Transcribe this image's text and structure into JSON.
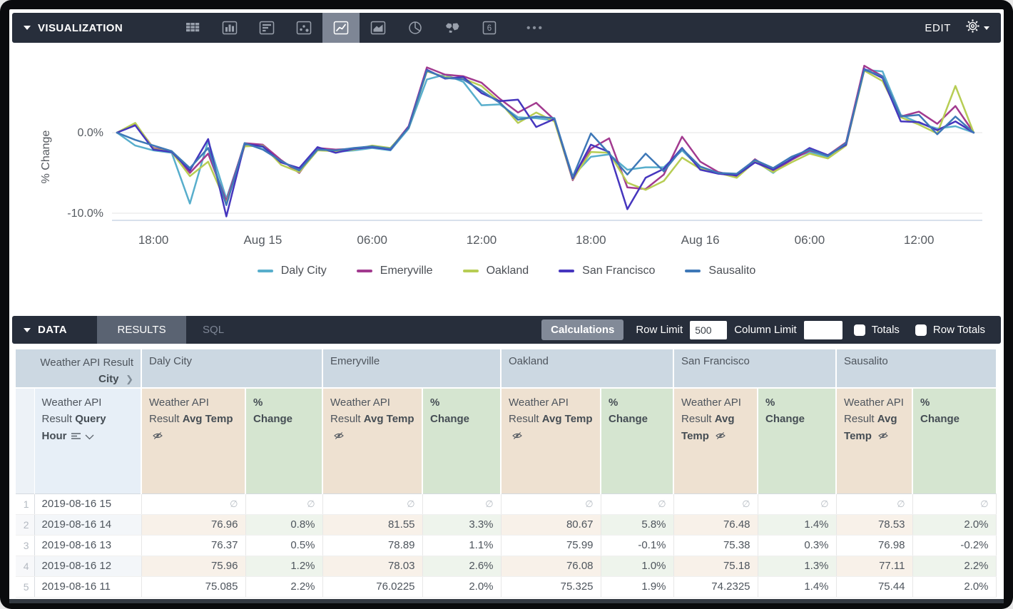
{
  "viz_bar": {
    "section_label": "VISUALIZATION",
    "edit_label": "EDIT",
    "icons": [
      "table",
      "bar-chart",
      "horizontal-bars",
      "scatter",
      "line-chart",
      "area-chart",
      "pie-chart",
      "map",
      "single-value"
    ],
    "selected_icon": "line-chart",
    "more_label": "•••"
  },
  "data_bar": {
    "section_label": "DATA",
    "tabs": [
      {
        "label": "RESULTS",
        "active": true
      },
      {
        "label": "SQL",
        "active": false
      }
    ],
    "calculations_label": "Calculations",
    "row_limit_label": "Row Limit",
    "row_limit_value": "500",
    "column_limit_label": "Column Limit",
    "column_limit_value": "",
    "totals_label": "Totals",
    "totals_checked": false,
    "row_totals_label": "Row Totals",
    "row_totals_checked": false
  },
  "chart_data": {
    "type": "line",
    "ylabel": "% Change",
    "x_unit": "hour",
    "x_range": "2019-08-14 16:00 to 2019-08-16 15:00",
    "ylim": [
      -11.5,
      9.5
    ],
    "grid": true,
    "legend_position": "bottom",
    "y_ticks": [
      {
        "value": 0,
        "label": "0.0%"
      },
      {
        "value": -10,
        "label": "-10.0%"
      }
    ],
    "x_ticks": [
      {
        "index": 2,
        "label": "18:00"
      },
      {
        "index": 8,
        "label": "Aug 15"
      },
      {
        "index": 14,
        "label": "06:00"
      },
      {
        "index": 20,
        "label": "12:00"
      },
      {
        "index": 26,
        "label": "18:00"
      },
      {
        "index": 32,
        "label": "Aug 16"
      },
      {
        "index": 38,
        "label": "06:00"
      },
      {
        "index": 44,
        "label": "12:00"
      }
    ],
    "series": [
      {
        "name": "Daly City",
        "color": "#58AECC",
        "values": [
          0,
          -1.6,
          -2.2,
          -2.5,
          -8.8,
          -1.0,
          -8.2,
          -1.5,
          -1.8,
          -3.6,
          -4.6,
          -2.0,
          -2.4,
          -2.2,
          -1.9,
          -2.2,
          0.5,
          6.6,
          7.2,
          6.3,
          3.4,
          3.5,
          1.9,
          1.8,
          1.5,
          -5.4,
          -3.0,
          -2.7,
          -4.6,
          -4.3,
          -4.3,
          -2.2,
          -4.4,
          -5.1,
          -5.2,
          -3.5,
          -5.0,
          -3.2,
          -2.4,
          -3.0,
          -1.4,
          7.8,
          7.6,
          2.2,
          1.2,
          0.5,
          0.8,
          0.0
        ]
      },
      {
        "name": "Emeryville",
        "color": "#A23A8F",
        "values": [
          0,
          1.1,
          -1.9,
          -2.3,
          -5.0,
          -2.6,
          -8.5,
          -1.3,
          -1.5,
          -3.4,
          -5.0,
          -1.9,
          -2.1,
          -2.0,
          -1.7,
          -2.0,
          0.8,
          8.1,
          7.2,
          7.0,
          6.2,
          4.2,
          2.5,
          3.7,
          1.6,
          -5.9,
          -2.0,
          -0.7,
          -6.8,
          -7.0,
          -5.2,
          -0.5,
          -3.6,
          -4.9,
          -5.4,
          -3.3,
          -4.8,
          -3.4,
          -2.2,
          -2.8,
          -1.2,
          8.3,
          7.0,
          2.0,
          2.6,
          1.1,
          3.3,
          0.0
        ]
      },
      {
        "name": "Oakland",
        "color": "#B7CD54",
        "values": [
          0,
          1.2,
          -2.0,
          -2.4,
          -5.4,
          -3.6,
          -8.8,
          -1.7,
          -1.6,
          -4.0,
          -4.9,
          -2.2,
          -2.3,
          -2.1,
          -1.6,
          -1.9,
          0.6,
          7.6,
          6.9,
          6.7,
          5.8,
          3.8,
          1.2,
          2.5,
          1.4,
          -5.8,
          -2.4,
          -2.5,
          -6.2,
          -7.1,
          -6.0,
          -3.1,
          -4.5,
          -5.0,
          -5.6,
          -3.6,
          -4.9,
          -3.7,
          -2.6,
          -3.2,
          -1.6,
          7.7,
          6.4,
          1.9,
          1.0,
          -0.1,
          5.8,
          0.0
        ]
      },
      {
        "name": "San Francisco",
        "color": "#4636BE",
        "values": [
          0,
          0.9,
          -2.1,
          -2.4,
          -4.7,
          -0.8,
          -10.4,
          -1.4,
          -1.7,
          -3.7,
          -4.4,
          -1.8,
          -2.5,
          -2.0,
          -1.8,
          -2.1,
          0.7,
          7.8,
          6.7,
          6.9,
          4.9,
          3.9,
          4.1,
          0.7,
          1.7,
          -5.7,
          -1.5,
          -2.4,
          -9.5,
          -5.6,
          -4.5,
          -1.9,
          -4.6,
          -5.1,
          -5.3,
          -3.7,
          -4.6,
          -3.3,
          -1.9,
          -2.8,
          -1.5,
          7.9,
          6.8,
          1.4,
          1.3,
          0.3,
          1.4,
          0.0
        ]
      },
      {
        "name": "Sausalito",
        "color": "#3E78B7",
        "values": [
          0,
          -0.9,
          -1.6,
          -2.3,
          -4.4,
          -1.9,
          -9.0,
          -1.3,
          -2.1,
          -3.5,
          -4.7,
          -2.1,
          -2.2,
          -1.9,
          -1.7,
          -2.0,
          0.6,
          7.7,
          6.8,
          6.6,
          5.2,
          3.7,
          1.6,
          2.0,
          1.8,
          -5.5,
          -0.1,
          -2.6,
          -5.2,
          -2.6,
          -4.8,
          -2.0,
          -4.2,
          -5.0,
          -5.1,
          -3.4,
          -4.4,
          -3.0,
          -2.1,
          -2.9,
          -1.3,
          7.8,
          7.0,
          2.0,
          2.2,
          -0.2,
          2.0,
          0.0
        ]
      }
    ]
  },
  "table": {
    "pivot_header": {
      "prefix": "Weather API Result",
      "bold": "City",
      "chevron": "❯"
    },
    "cities": [
      "Daly City",
      "Emeryville",
      "Oakland",
      "San Francisco",
      "Sausalito"
    ],
    "dimension_header": {
      "prefix": "Weather API Result",
      "bold": "Query Hour"
    },
    "measure_header": {
      "prefix": "Weather API Result",
      "bold": "Avg Temp"
    },
    "calc_header": "% Change",
    "null_symbol": "∅",
    "rows": [
      {
        "num": "1",
        "hour": "2019-08-16 15",
        "cells": [
          null,
          null,
          null,
          null,
          null,
          null,
          null,
          null,
          null,
          null
        ]
      },
      {
        "num": "2",
        "hour": "2019-08-16 14",
        "cells": [
          "76.96",
          "0.8%",
          "81.55",
          "3.3%",
          "80.67",
          "5.8%",
          "76.48",
          "1.4%",
          "78.53",
          "2.0%"
        ]
      },
      {
        "num": "3",
        "hour": "2019-08-16 13",
        "cells": [
          "76.37",
          "0.5%",
          "78.89",
          "1.1%",
          "75.99",
          "-0.1%",
          "75.38",
          "0.3%",
          "76.98",
          "-0.2%"
        ]
      },
      {
        "num": "4",
        "hour": "2019-08-16 12",
        "cells": [
          "75.96",
          "1.2%",
          "78.03",
          "2.6%",
          "76.08",
          "1.0%",
          "75.18",
          "1.3%",
          "77.11",
          "2.2%"
        ]
      },
      {
        "num": "5",
        "hour": "2019-08-16 11",
        "cells": [
          "75.085",
          "2.2%",
          "76.0225",
          "2.0%",
          "75.325",
          "1.9%",
          "74.2325",
          "1.4%",
          "75.44",
          "2.0%"
        ]
      }
    ]
  }
}
